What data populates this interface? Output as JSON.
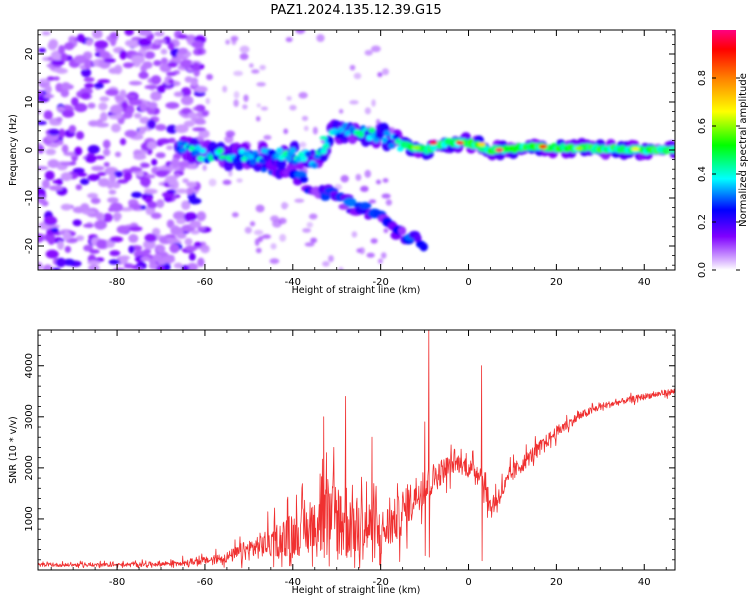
{
  "title": "PAZ1.2024.135.12.39.G15",
  "chart_data": [
    {
      "type": "heatmap",
      "xlabel": "Height of straight line (km)",
      "ylabel": "Frequency (Hz)",
      "xlim": [
        -98,
        47
      ],
      "ylim": [
        -25,
        25
      ],
      "xticks": [
        -80,
        -60,
        -40,
        -20,
        0,
        20,
        40
      ],
      "yticks": [
        -20,
        -10,
        0,
        10,
        20
      ],
      "colorbar": {
        "label": "Normalized spectral amplitude",
        "range": [
          0,
          1
        ],
        "ticks": [
          "0.0",
          "0.2",
          "0.4",
          "0.6",
          "0.8"
        ],
        "colormap": "gist_rainbow"
      },
      "ridges": [
        {
          "name": "main",
          "points": [
            [
              -65,
              1
            ],
            [
              -60,
              -1
            ],
            [
              -50,
              -1.5
            ],
            [
              -42,
              -1
            ],
            [
              -35,
              -2
            ],
            [
              -30,
              4
            ],
            [
              -25,
              3.5
            ],
            [
              -20,
              3
            ],
            [
              -15,
              1
            ],
            [
              -10,
              0
            ],
            [
              -5,
              1.5
            ],
            [
              0,
              1.5
            ],
            [
              5,
              0
            ],
            [
              10,
              0.3
            ],
            [
              15,
              0.8
            ],
            [
              20,
              0.5
            ],
            [
              30,
              0.3
            ],
            [
              40,
              0
            ],
            [
              47,
              0
            ]
          ]
        },
        {
          "name": "lower-branch",
          "points": [
            [
              -60,
              0
            ],
            [
              -50,
              -2
            ],
            [
              -40,
              -5
            ],
            [
              -35,
              -8
            ],
            [
              -30,
              -10
            ],
            [
              -25,
              -12
            ],
            [
              -20,
              -14
            ],
            [
              -15,
              -18
            ],
            [
              -10,
              -19
            ]
          ]
        }
      ]
    },
    {
      "type": "line",
      "xlabel": "Height of straight line (km)",
      "ylabel": "SNR (10 * v/v)",
      "xlim": [
        -98,
        47
      ],
      "ylim": [
        0,
        4700
      ],
      "xticks": [
        -80,
        -60,
        -40,
        -20,
        0,
        20,
        40
      ],
      "yticks": [
        1000,
        2000,
        3000,
        4000
      ],
      "color": "#f03030",
      "envelope": {
        "x": [
          -98,
          -80,
          -70,
          -60,
          -55,
          -50,
          -45,
          -40,
          -35,
          -30,
          -25,
          -20,
          -15,
          -12,
          -10,
          -8,
          -5,
          -3,
          0,
          3,
          5,
          8,
          10,
          15,
          20,
          25,
          30,
          35,
          40,
          47
        ],
        "baseline": [
          100,
          100,
          120,
          180,
          250,
          400,
          550,
          700,
          800,
          1000,
          900,
          700,
          1100,
          1500,
          1600,
          1800,
          2000,
          2100,
          2000,
          1900,
          1200,
          1600,
          1900,
          2300,
          2700,
          3000,
          3200,
          3300,
          3400,
          3500
        ],
        "spread": [
          60,
          60,
          80,
          120,
          180,
          350,
          500,
          700,
          900,
          1400,
          1200,
          800,
          700,
          600,
          600,
          500,
          400,
          300,
          300,
          300,
          400,
          300,
          300,
          250,
          200,
          150,
          120,
          100,
          100,
          100
        ]
      },
      "spikes": [
        [
          -9,
          4700
        ],
        [
          3,
          4000
        ],
        [
          -33,
          3000
        ],
        [
          -28,
          3400
        ],
        [
          -22,
          2600
        ],
        [
          -10,
          2900
        ]
      ]
    }
  ]
}
